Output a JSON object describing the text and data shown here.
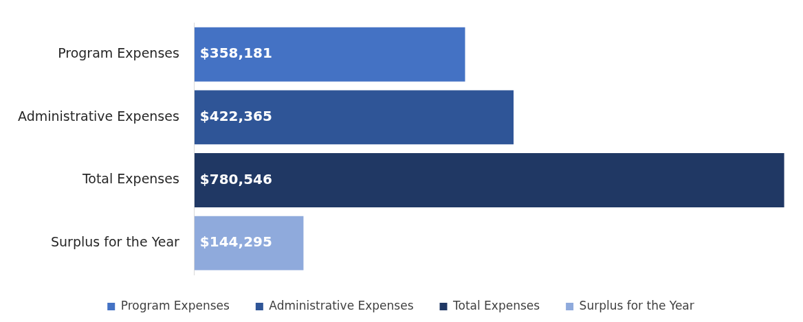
{
  "chart_data": {
    "type": "bar",
    "orientation": "horizontal",
    "categories": [
      "Program Expenses",
      "Administrative Expenses",
      "Total Expenses",
      "Surplus for the Year"
    ],
    "series": [
      {
        "name": "Program Expenses",
        "color": "#4472c4",
        "values": [
          358181,
          null,
          null,
          null
        ],
        "value_labels": [
          "$358,181",
          null,
          null,
          null
        ]
      },
      {
        "name": "Administrative Expenses",
        "color": "#2f5597",
        "values": [
          null,
          422365,
          null,
          null
        ],
        "value_labels": [
          null,
          "$422,365",
          null,
          null
        ]
      },
      {
        "name": "Total Expenses",
        "color": "#203864",
        "values": [
          null,
          null,
          780546,
          null
        ],
        "value_labels": [
          null,
          null,
          "$780,546",
          null
        ]
      },
      {
        "name": "Surplus for the Year",
        "color": "#8faadc",
        "values": [
          null,
          null,
          null,
          144295
        ],
        "value_labels": [
          null,
          null,
          null,
          "$144,295"
        ]
      }
    ],
    "tick_labels": "y",
    "grid": false,
    "legend": "bottom"
  }
}
